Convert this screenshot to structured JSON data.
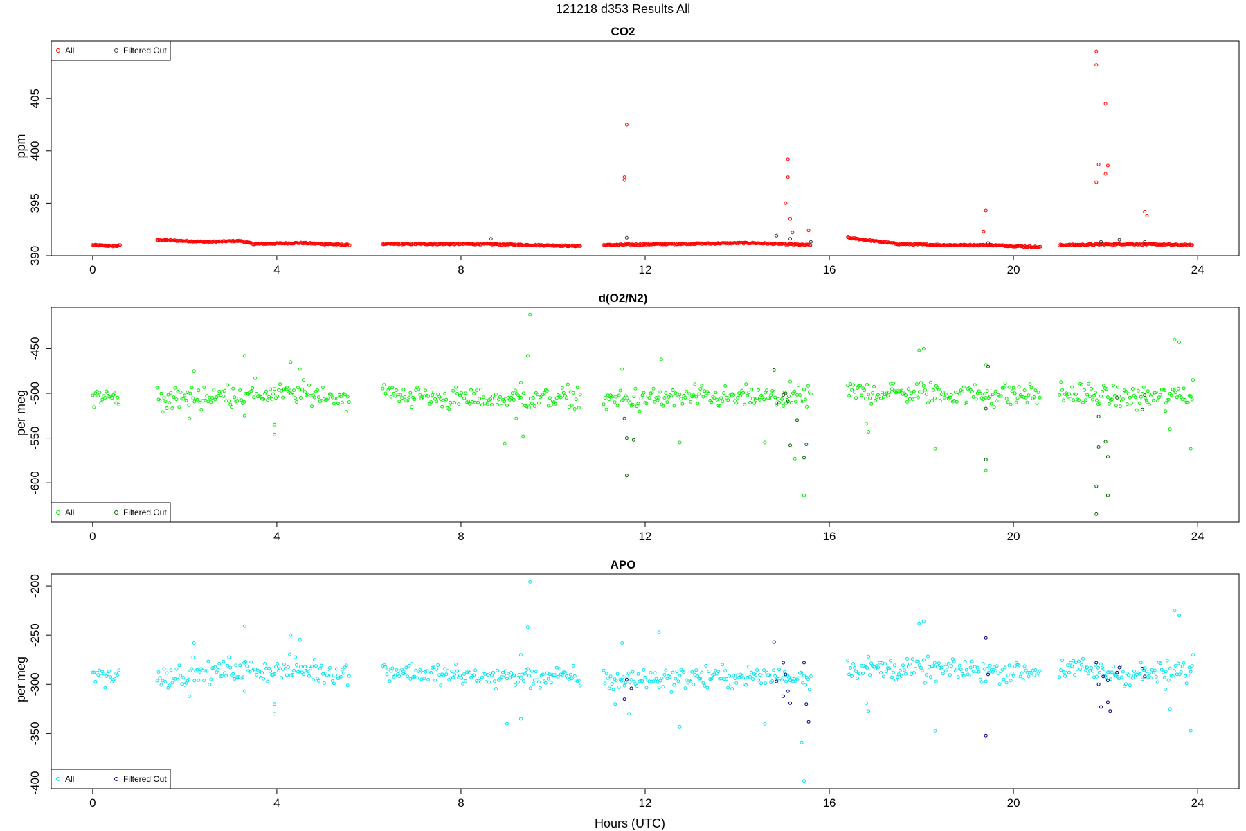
{
  "figure": {
    "title": "121218   d353   Results All",
    "xlabel": "Hours (UTC)"
  },
  "chart_data": [
    {
      "type": "scatter",
      "title": "CO2",
      "xlabel": "",
      "ylabel": "ppm",
      "xlim": [
        -0.9,
        24.9
      ],
      "ylim": [
        390,
        410.5
      ],
      "xticks": [
        0,
        4,
        8,
        12,
        16,
        20,
        24
      ],
      "yticks": [
        390,
        395,
        400,
        405
      ],
      "legend": {
        "position": "top-left",
        "entries": [
          "All",
          "Filtered Out"
        ]
      },
      "colors": {
        "all": "#ff0000",
        "filtered": "#333333"
      },
      "baseline": {
        "segments": [
          [
            0,
            0.6
          ],
          [
            1.4,
            5.6
          ],
          [
            6.3,
            10.6
          ],
          [
            11.1,
            15.6
          ],
          [
            16.4,
            20.6
          ],
          [
            21.0,
            23.9
          ]
        ],
        "x": [
          0,
          0.5,
          1.4,
          2.5,
          3.2,
          3.5,
          4.5,
          5.6,
          6.3,
          7.5,
          8.5,
          10.6,
          11.1,
          12.5,
          14.3,
          15.6,
          16.4,
          17.5,
          18.5,
          19.5,
          20.6,
          21.0,
          22.5,
          23.9
        ],
        "y": [
          391.0,
          390.9,
          391.5,
          391.3,
          391.4,
          391.1,
          391.2,
          391.0,
          391.1,
          391.1,
          391.1,
          390.9,
          391.0,
          391.1,
          391.2,
          391.0,
          391.7,
          391.1,
          391.0,
          391.0,
          390.8,
          391.0,
          391.1,
          391.0
        ]
      },
      "outliers_all": [
        [
          11.6,
          402.5
        ],
        [
          11.55,
          397.5
        ],
        [
          11.55,
          397.2
        ],
        [
          15.1,
          399.2
        ],
        [
          15.1,
          397.5
        ],
        [
          15.05,
          395.0
        ],
        [
          15.15,
          393.5
        ],
        [
          15.2,
          392.2
        ],
        [
          15.55,
          392.4
        ],
        [
          19.4,
          394.3
        ],
        [
          19.35,
          392.3
        ],
        [
          21.8,
          409.5
        ],
        [
          21.8,
          408.2
        ],
        [
          22.0,
          404.5
        ],
        [
          21.85,
          398.7
        ],
        [
          21.8,
          397.0
        ],
        [
          22.05,
          398.6
        ],
        [
          22.0,
          397.8
        ],
        [
          22.85,
          394.2
        ],
        [
          22.9,
          393.8
        ]
      ],
      "filtered_out": [
        [
          8.65,
          391.6
        ],
        [
          11.6,
          391.7
        ],
        [
          14.85,
          391.9
        ],
        [
          15.15,
          391.6
        ],
        [
          15.6,
          391.3
        ],
        [
          19.45,
          391.2
        ],
        [
          21.9,
          391.3
        ],
        [
          22.3,
          391.5
        ],
        [
          22.85,
          391.3
        ]
      ]
    },
    {
      "type": "scatter",
      "title": "d(O2/N2)",
      "xlabel": "",
      "ylabel": "per meg",
      "xlim": [
        -0.9,
        24.9
      ],
      "ylim": [
        -644,
        -404
      ],
      "xticks": [
        0,
        4,
        8,
        12,
        16,
        20,
        24
      ],
      "yticks": [
        -600,
        -550,
        -500,
        -450
      ],
      "legend": {
        "position": "bottom-left",
        "entries": [
          "All",
          "Filtered Out"
        ]
      },
      "colors": {
        "all": "#00ee00",
        "filtered": "#006400"
      },
      "baseline": {
        "segments": [
          [
            0,
            0.6
          ],
          [
            1.4,
            5.6
          ],
          [
            6.3,
            10.6
          ],
          [
            11.1,
            15.6
          ],
          [
            16.4,
            20.6
          ],
          [
            21.0,
            23.9
          ]
        ],
        "x": [
          0,
          0.6,
          1.4,
          3.0,
          4.5,
          5.6,
          6.3,
          8.0,
          10.6,
          11.1,
          13.0,
          15.6,
          16.4,
          18.0,
          20.6,
          21.0,
          22.5,
          23.9
        ],
        "y": [
          -503,
          -505,
          -507,
          -502,
          -500,
          -505,
          -500,
          -507,
          -505,
          -508,
          -505,
          -505,
          -498,
          -500,
          -502,
          -500,
          -505,
          -502
        ],
        "spread": 9
      },
      "outliers_all": [
        [
          9.5,
          -412
        ],
        [
          9.45,
          -458
        ],
        [
          9.3,
          -488
        ],
        [
          9.2,
          -528
        ],
        [
          9.35,
          -548
        ],
        [
          8.95,
          -556
        ],
        [
          3.3,
          -458
        ],
        [
          3.3,
          -525
        ],
        [
          4.3,
          -465
        ],
        [
          4.5,
          -473
        ],
        [
          3.95,
          -535
        ],
        [
          3.95,
          -546
        ],
        [
          2.2,
          -475
        ],
        [
          2.1,
          -528
        ],
        [
          11.5,
          -473
        ],
        [
          12.35,
          -462
        ],
        [
          12.75,
          -555
        ],
        [
          15.45,
          -614
        ],
        [
          14.6,
          -555
        ],
        [
          15.25,
          -573
        ],
        [
          17.95,
          -452
        ],
        [
          18.05,
          -450
        ],
        [
          16.8,
          -534
        ],
        [
          16.85,
          -543
        ],
        [
          18.3,
          -562
        ],
        [
          19.4,
          -468
        ],
        [
          19.4,
          -586
        ],
        [
          23.5,
          -440
        ],
        [
          23.6,
          -443
        ],
        [
          23.9,
          -485
        ],
        [
          23.85,
          -562
        ],
        [
          23.4,
          -540
        ],
        [
          23.3,
          -520
        ],
        [
          22.9,
          -510
        ]
      ],
      "filtered_out": [
        [
          11.6,
          -592
        ],
        [
          11.55,
          -528
        ],
        [
          11.6,
          -550
        ],
        [
          11.75,
          -552
        ],
        [
          14.8,
          -474
        ],
        [
          14.85,
          -511
        ],
        [
          15.0,
          -502
        ],
        [
          15.05,
          -500
        ],
        [
          15.1,
          -509
        ],
        [
          15.15,
          -558
        ],
        [
          15.45,
          -572
        ],
        [
          15.5,
          -557
        ],
        [
          15.3,
          -530
        ],
        [
          19.4,
          -574
        ],
        [
          19.4,
          -517
        ],
        [
          19.45,
          -470
        ],
        [
          21.8,
          -604
        ],
        [
          21.8,
          -635
        ],
        [
          21.85,
          -560
        ],
        [
          22.0,
          -554
        ],
        [
          22.05,
          -571
        ],
        [
          22.05,
          -614
        ],
        [
          22.25,
          -505
        ],
        [
          21.85,
          -526
        ],
        [
          22.8,
          -518
        ],
        [
          22.85,
          -502
        ]
      ]
    },
    {
      "type": "scatter",
      "title": "APO",
      "xlabel": "",
      "ylabel": "per meg",
      "xlim": [
        -0.9,
        24.9
      ],
      "ylim": [
        -406,
        -188
      ],
      "xticks": [
        0,
        4,
        8,
        12,
        16,
        20,
        24
      ],
      "yticks": [
        -400,
        -350,
        -300,
        -250,
        -200
      ],
      "legend": {
        "position": "bottom-left",
        "entries": [
          "All",
          "Filtered Out"
        ]
      },
      "colors": {
        "all": "#00e5ee",
        "filtered": "#00008b"
      },
      "baseline": {
        "segments": [
          [
            0,
            0.6
          ],
          [
            1.4,
            5.6
          ],
          [
            6.3,
            10.6
          ],
          [
            11.1,
            15.6
          ],
          [
            16.4,
            20.6
          ],
          [
            21.0,
            23.9
          ]
        ],
        "x": [
          0,
          0.6,
          1.4,
          3.0,
          4.5,
          5.6,
          6.3,
          8.0,
          10.6,
          11.1,
          13.0,
          15.6,
          16.4,
          18.0,
          20.6,
          21.0,
          22.5,
          23.9
        ],
        "y": [
          -290,
          -292,
          -292,
          -286,
          -285,
          -289,
          -285,
          -292,
          -293,
          -296,
          -293,
          -292,
          -283,
          -285,
          -287,
          -283,
          -290,
          -287
        ],
        "spread": 8
      },
      "outliers_all": [
        [
          9.5,
          -196
        ],
        [
          9.45,
          -242
        ],
        [
          9.3,
          -270
        ],
        [
          9.0,
          -340
        ],
        [
          9.3,
          -335
        ],
        [
          3.3,
          -241
        ],
        [
          3.3,
          -307
        ],
        [
          4.3,
          -250
        ],
        [
          4.5,
          -255
        ],
        [
          3.95,
          -320
        ],
        [
          3.95,
          -330
        ],
        [
          2.2,
          -258
        ],
        [
          2.1,
          -312
        ],
        [
          11.5,
          -258
        ],
        [
          12.3,
          -247
        ],
        [
          12.75,
          -343
        ],
        [
          15.45,
          -398
        ],
        [
          15.4,
          -359
        ],
        [
          14.6,
          -340
        ],
        [
          17.95,
          -238
        ],
        [
          18.05,
          -236
        ],
        [
          16.8,
          -319
        ],
        [
          16.85,
          -327
        ],
        [
          18.3,
          -347
        ],
        [
          23.5,
          -225
        ],
        [
          23.6,
          -230
        ],
        [
          23.9,
          -270
        ],
        [
          23.85,
          -347
        ],
        [
          23.4,
          -325
        ],
        [
          23.3,
          -305
        ],
        [
          11.35,
          -320
        ],
        [
          11.65,
          -330
        ]
      ],
      "filtered_out": [
        [
          11.6,
          -295
        ],
        [
          11.55,
          -315
        ],
        [
          11.7,
          -304
        ],
        [
          14.8,
          -257
        ],
        [
          14.85,
          -297
        ],
        [
          15.0,
          -278
        ],
        [
          15.05,
          -290
        ],
        [
          15.1,
          -307
        ],
        [
          15.15,
          -319
        ],
        [
          15.5,
          -320
        ],
        [
          15.55,
          -338
        ],
        [
          15.45,
          -278
        ],
        [
          15.0,
          -312
        ],
        [
          19.4,
          -253
        ],
        [
          19.4,
          -352
        ],
        [
          19.45,
          -290
        ],
        [
          21.8,
          -278
        ],
        [
          21.85,
          -300
        ],
        [
          21.9,
          -323
        ],
        [
          22.05,
          -296
        ],
        [
          22.05,
          -318
        ],
        [
          22.1,
          -327
        ],
        [
          22.25,
          -288
        ],
        [
          22.3,
          -283
        ],
        [
          21.95,
          -292
        ],
        [
          22.8,
          -284
        ],
        [
          22.85,
          -292
        ]
      ]
    }
  ]
}
